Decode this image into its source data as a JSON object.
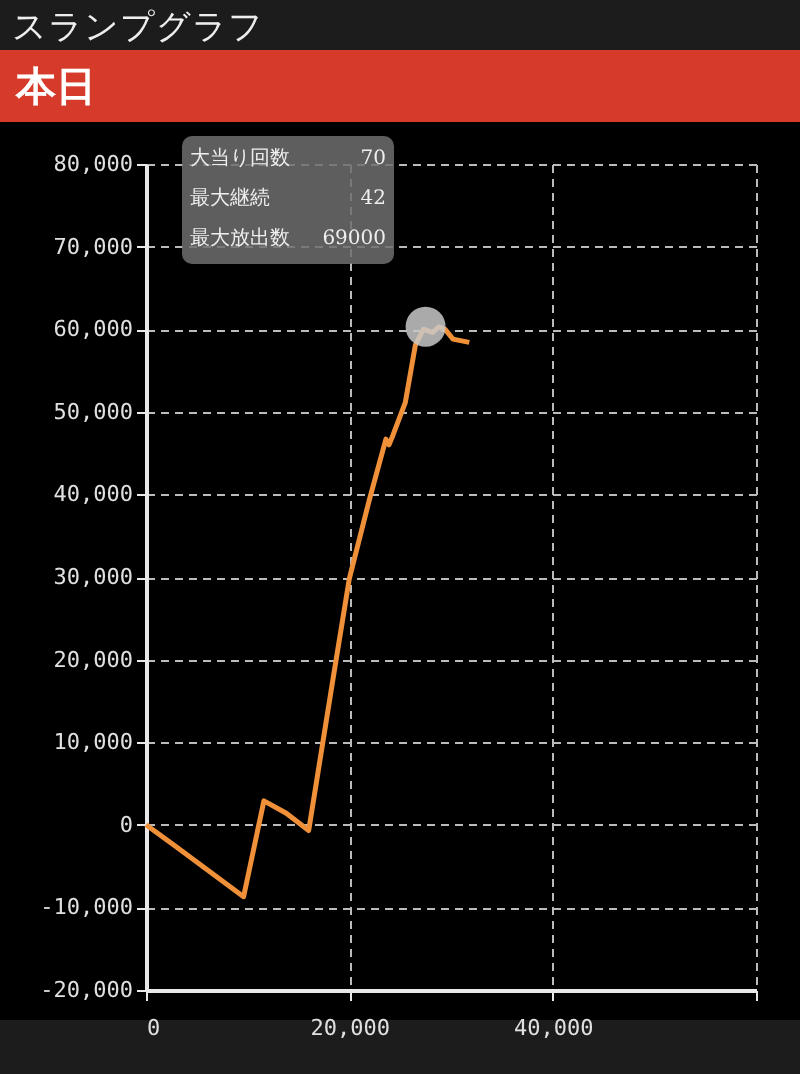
{
  "chart_data": {
    "type": "line",
    "title": "スランプグラフ",
    "subtitle": "本日",
    "annotations": [
      "大当り回数",
      "70",
      "最大継続",
      "42",
      "最大放出数",
      "69000"
    ],
    "xlim": [
      0,
      60000
    ],
    "xticks": [
      0,
      {
        "value": 20000,
        "label": "20,000"
      },
      {
        "value": 40000,
        "label": "40,000"
      },
      {
        "value": 60000,
        "label": null
      }
    ],
    "ylim": [
      -20000,
      80000
    ],
    "yticks": [
      {
        "value": -20000,
        "label": "-20,000"
      },
      {
        "value": -10000,
        "label": "-10,000"
      },
      0,
      {
        "value": 10000,
        "label": "10,000"
      },
      {
        "value": 20000,
        "label": "20,000"
      },
      {
        "value": 30000,
        "label": "30,000"
      },
      {
        "value": 40000,
        "label": "40,000"
      },
      {
        "value": 50000,
        "label": "50,000"
      },
      {
        "value": 60000,
        "label": "60,000"
      },
      {
        "value": 70000,
        "label": "70,000"
      },
      {
        "value": 80000,
        "label": "80,000"
      }
    ],
    "grid": true,
    "line_style": "solid",
    "series": [
      {
        "color": "#f0913a",
        "x": [
          0,
          3000,
          9600,
          11600,
          13800,
          16000,
          18400,
          20000,
          22000,
          23600,
          23900,
          24300,
          25500,
          26500,
          27300,
          28200,
          28800,
          29400,
          30200,
          31800
        ],
        "values": [
          0,
          -2700,
          -8700,
          2900,
          1400,
          -700,
          17700,
          29800,
          39500,
          46700,
          46000,
          47200,
          51100,
          58100,
          60000,
          59600,
          60300,
          60000,
          58800,
          58400
        ]
      },
      {
        "type": "scatter",
        "color": "#c8c8c8",
        "x": [
          27500
        ],
        "values": [
          60300
        ]
      }
    ]
  }
}
